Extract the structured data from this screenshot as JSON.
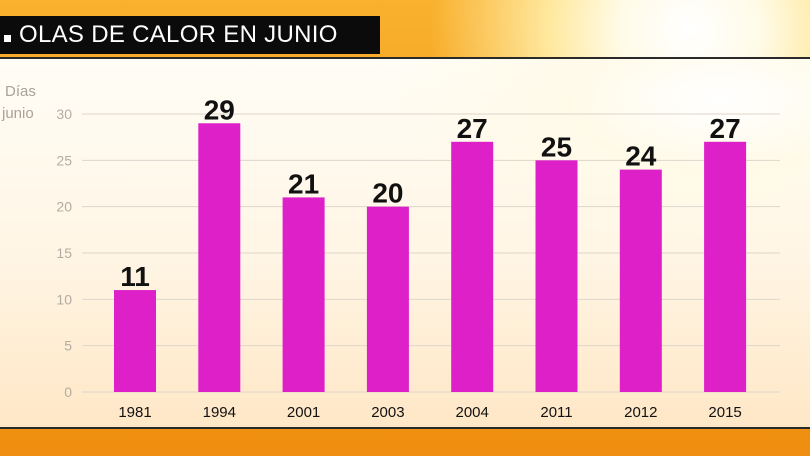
{
  "title": "OLAS DE CALOR EN JUNIO",
  "colors": {
    "bar": "#dd20c7",
    "title_bg": "#0b0b0b",
    "title_text": "#ffffff"
  },
  "chart_data": {
    "type": "bar",
    "title": "OLAS DE CALOR EN JUNIO",
    "ylabel": [
      "Días",
      "junio"
    ],
    "xlabel": "",
    "categories": [
      "1981",
      "1994",
      "2001",
      "2003",
      "2004",
      "2011",
      "2012",
      "2015"
    ],
    "values": [
      11,
      29,
      21,
      20,
      27,
      25,
      24,
      27
    ],
    "ylim": [
      0,
      30
    ],
    "yticks": [
      0,
      5,
      10,
      15,
      20,
      25,
      30
    ],
    "grid": true,
    "data_labels": true,
    "legend": "none"
  }
}
